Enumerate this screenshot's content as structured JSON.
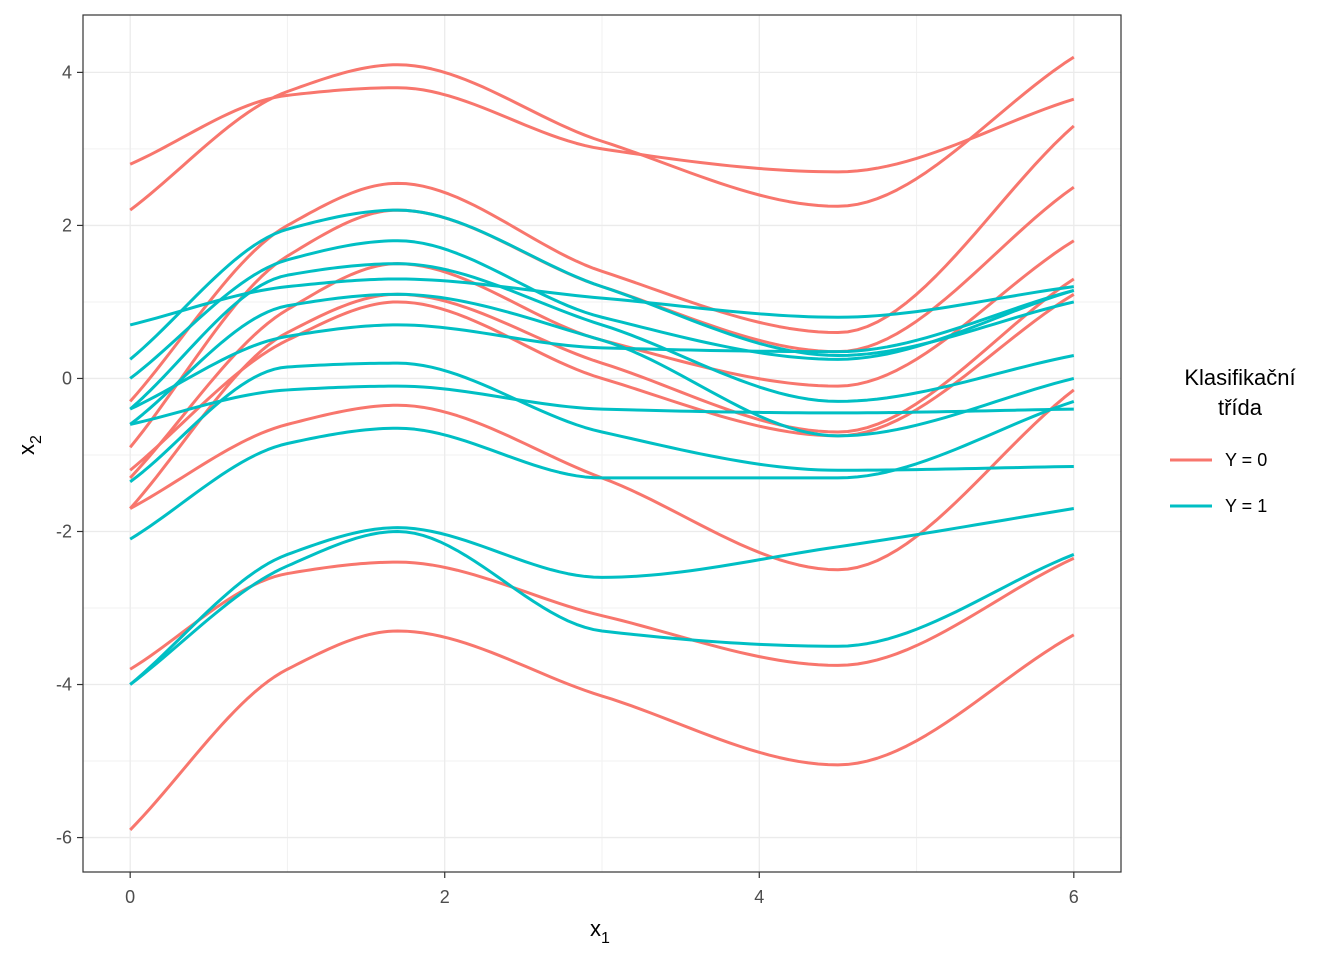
{
  "chart_data": {
    "type": "line",
    "xlabel": "x",
    "xlabel_sub": "1",
    "ylabel": "x",
    "ylabel_sub": "2",
    "xlim": [
      -0.3,
      6.3
    ],
    "ylim": [
      -6.45,
      4.75
    ],
    "xticks": [
      0,
      2,
      4,
      6
    ],
    "xtick_labels": [
      "0",
      "2",
      "4",
      "6"
    ],
    "yticks": [
      -6,
      -4,
      -2,
      0,
      2,
      4
    ],
    "ytick_labels": [
      "-6",
      "-4",
      "-2",
      "0",
      "2",
      "4"
    ],
    "grid": true,
    "legend": {
      "title_line1": "Klasifikační",
      "title_line2": "třída",
      "position": "right",
      "entries": [
        {
          "label": "Y = 0",
          "color": "#F8766D"
        },
        {
          "label": "Y = 1",
          "color": "#00BFC4"
        }
      ]
    },
    "x": [
      0,
      1,
      1.7,
      3,
      4.5,
      6
    ],
    "series": [
      {
        "class": 0,
        "color": "#F8766D",
        "values": [
          2.8,
          3.7,
          3.8,
          3.0,
          2.7,
          3.65
        ]
      },
      {
        "class": 0,
        "color": "#F8766D",
        "values": [
          2.2,
          3.75,
          4.1,
          3.1,
          2.25,
          4.2
        ]
      },
      {
        "class": 0,
        "color": "#F8766D",
        "values": [
          -0.3,
          2.0,
          2.55,
          1.4,
          0.6,
          3.3
        ]
      },
      {
        "class": 0,
        "color": "#F8766D",
        "values": [
          -0.9,
          1.6,
          2.2,
          1.2,
          0.35,
          2.5
        ]
      },
      {
        "class": 0,
        "color": "#F8766D",
        "values": [
          -1.3,
          0.9,
          1.5,
          0.5,
          -0.1,
          1.8
        ]
      },
      {
        "class": 0,
        "color": "#F8766D",
        "values": [
          -1.7,
          0.6,
          1.1,
          0.2,
          -0.7,
          1.3
        ]
      },
      {
        "class": 0,
        "color": "#F8766D",
        "values": [
          -1.2,
          0.5,
          1.0,
          0.0,
          -0.75,
          1.1
        ]
      },
      {
        "class": 0,
        "color": "#F8766D",
        "values": [
          -1.7,
          -0.6,
          -0.35,
          -1.3,
          -2.5,
          -0.15
        ]
      },
      {
        "class": 0,
        "color": "#F8766D",
        "values": [
          -3.8,
          -2.55,
          -2.4,
          -3.1,
          -3.75,
          -2.35
        ]
      },
      {
        "class": 0,
        "color": "#F8766D",
        "values": [
          -5.9,
          -3.8,
          -3.3,
          -4.15,
          -5.05,
          -3.35
        ]
      },
      {
        "class": 1,
        "color": "#00BFC4",
        "values": [
          0.7,
          1.2,
          1.3,
          1.05,
          0.8,
          1.2
        ]
      },
      {
        "class": 1,
        "color": "#00BFC4",
        "values": [
          0.25,
          1.95,
          2.2,
          1.2,
          0.3,
          1.0
        ]
      },
      {
        "class": 1,
        "color": "#00BFC4",
        "values": [
          0.0,
          1.55,
          1.8,
          0.8,
          0.25,
          1.15
        ]
      },
      {
        "class": 1,
        "color": "#00BFC4",
        "values": [
          -0.4,
          1.35,
          1.5,
          0.7,
          -0.3,
          0.3
        ]
      },
      {
        "class": 1,
        "color": "#00BFC4",
        "values": [
          -0.6,
          0.95,
          1.1,
          0.5,
          -0.75,
          0.0
        ]
      },
      {
        "class": 1,
        "color": "#00BFC4",
        "values": [
          -0.4,
          0.55,
          0.7,
          0.4,
          0.35,
          1.15
        ]
      },
      {
        "class": 1,
        "color": "#00BFC4",
        "values": [
          -0.6,
          -0.15,
          -0.1,
          -0.4,
          -0.45,
          -0.4
        ]
      },
      {
        "class": 1,
        "color": "#00BFC4",
        "values": [
          -1.35,
          0.15,
          0.2,
          -0.7,
          -1.2,
          -1.15
        ]
      },
      {
        "class": 1,
        "color": "#00BFC4",
        "values": [
          -2.1,
          -0.85,
          -0.65,
          -1.3,
          -1.3,
          -0.3
        ]
      },
      {
        "class": 1,
        "color": "#00BFC4",
        "values": [
          -4.0,
          -2.3,
          -1.95,
          -2.6,
          -2.2,
          -1.7
        ]
      },
      {
        "class": 1,
        "color": "#00BFC4",
        "values": [
          -4.0,
          -2.45,
          -2.0,
          -3.3,
          -3.5,
          -2.3
        ]
      }
    ]
  }
}
